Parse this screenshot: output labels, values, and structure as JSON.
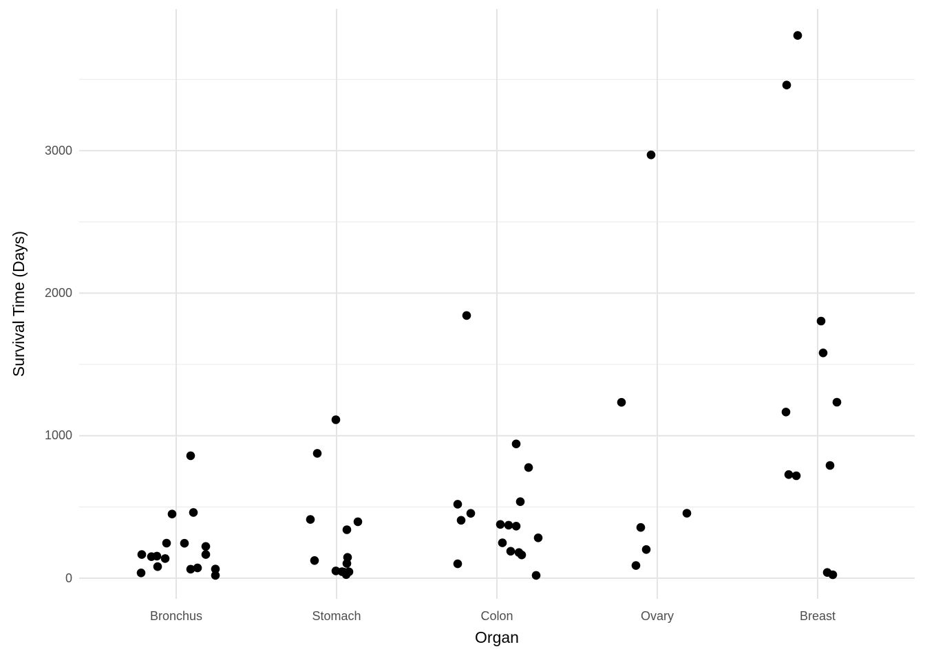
{
  "chart_data": {
    "type": "scatter",
    "subtype": "jittered-strip-plot",
    "title": "",
    "xlabel": "Organ",
    "ylabel": "Survival Time (Days)",
    "categories": [
      "Bronchus",
      "Stomach",
      "Colon",
      "Ovary",
      "Breast"
    ],
    "ytick_values": [
      0,
      1000,
      2000,
      3000
    ],
    "ytick_labels": [
      "0",
      "1000",
      "2000",
      "3000"
    ],
    "yminor_values": [
      500,
      1500,
      2500,
      3500
    ],
    "ylim": [
      -170,
      4000
    ],
    "grid": "major-and-minor-horizontal, major-vertical-at-categories",
    "legend": "none",
    "series": [
      {
        "name": "Bronchus",
        "points": [
          {
            "v": 859,
            "dx": 21
          },
          {
            "v": 461,
            "dx": 25
          },
          {
            "v": 450,
            "dx": -6
          },
          {
            "v": 246,
            "dx": -14
          },
          {
            "v": 245,
            "dx": 12
          },
          {
            "v": 223,
            "dx": 43
          },
          {
            "v": 166,
            "dx": -50
          },
          {
            "v": 166,
            "dx": 43
          },
          {
            "v": 155,
            "dx": -28
          },
          {
            "v": 151,
            "dx": -36
          },
          {
            "v": 138,
            "dx": -16
          },
          {
            "v": 81,
            "dx": -27
          },
          {
            "v": 72,
            "dx": 31
          },
          {
            "v": 64,
            "dx": 57
          },
          {
            "v": 63,
            "dx": 21
          },
          {
            "v": 37,
            "dx": -51
          },
          {
            "v": 20,
            "dx": 57
          }
        ]
      },
      {
        "name": "Stomach",
        "points": [
          {
            "v": 1112,
            "dx": -1
          },
          {
            "v": 876,
            "dx": -28
          },
          {
            "v": 412,
            "dx": -38
          },
          {
            "v": 396,
            "dx": 31
          },
          {
            "v": 340,
            "dx": 15
          },
          {
            "v": 146,
            "dx": 16
          },
          {
            "v": 124,
            "dx": -32
          },
          {
            "v": 103,
            "dx": 15
          },
          {
            "v": 51,
            "dx": -1
          },
          {
            "v": 46,
            "dx": 8
          },
          {
            "v": 45,
            "dx": 18
          },
          {
            "v": 42,
            "dx": 11
          },
          {
            "v": 25,
            "dx": 14
          }
        ]
      },
      {
        "name": "Colon",
        "points": [
          {
            "v": 1843,
            "dx": -44
          },
          {
            "v": 942,
            "dx": 28
          },
          {
            "v": 776,
            "dx": 46
          },
          {
            "v": 537,
            "dx": 34
          },
          {
            "v": 519,
            "dx": -57
          },
          {
            "v": 455,
            "dx": -38
          },
          {
            "v": 406,
            "dx": -52
          },
          {
            "v": 377,
            "dx": 5
          },
          {
            "v": 372,
            "dx": 17
          },
          {
            "v": 365,
            "dx": 28
          },
          {
            "v": 283,
            "dx": 60
          },
          {
            "v": 248,
            "dx": 8
          },
          {
            "v": 189,
            "dx": 20
          },
          {
            "v": 180,
            "dx": 32
          },
          {
            "v": 163,
            "dx": 36
          },
          {
            "v": 101,
            "dx": -57
          },
          {
            "v": 20,
            "dx": 57
          }
        ]
      },
      {
        "name": "Ovary",
        "points": [
          {
            "v": 2970,
            "dx": -9
          },
          {
            "v": 1234,
            "dx": -52
          },
          {
            "v": 456,
            "dx": 43
          },
          {
            "v": 356,
            "dx": -24
          },
          {
            "v": 201,
            "dx": -16
          },
          {
            "v": 89,
            "dx": -31
          }
        ]
      },
      {
        "name": "Breast",
        "points": [
          {
            "v": 3808,
            "dx": -29
          },
          {
            "v": 3460,
            "dx": -45
          },
          {
            "v": 1804,
            "dx": 5
          },
          {
            "v": 1581,
            "dx": 8
          },
          {
            "v": 1235,
            "dx": 28
          },
          {
            "v": 1166,
            "dx": -46
          },
          {
            "v": 791,
            "dx": 18
          },
          {
            "v": 727,
            "dx": -42
          },
          {
            "v": 719,
            "dx": -31
          },
          {
            "v": 40,
            "dx": 14
          },
          {
            "v": 24,
            "dx": 22
          }
        ]
      }
    ],
    "colors": {
      "point": "#000000",
      "grid_major": "#e4e4e4",
      "grid_minor": "#ededed",
      "tick_text": "#4d4d4d",
      "axis_title_text": "#000000",
      "background": "#ffffff"
    }
  }
}
